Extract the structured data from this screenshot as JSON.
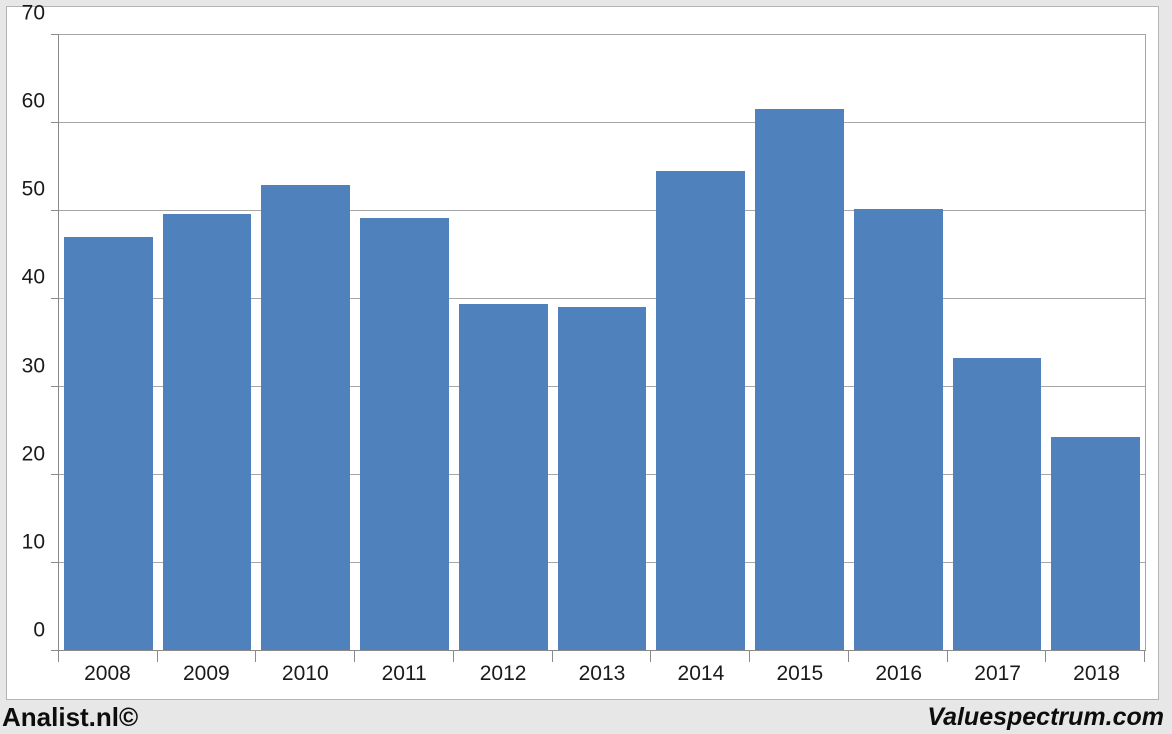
{
  "page": {
    "background_color": "#e7e7e7",
    "chart_area_color": "#ffffff"
  },
  "footer": {
    "left": "Analist.nl©",
    "right": "Valuespectrum.com"
  },
  "chart_data": {
    "type": "bar",
    "title": "",
    "xlabel": "",
    "ylabel": "",
    "categories": [
      "2008",
      "2009",
      "2010",
      "2011",
      "2012",
      "2013",
      "2014",
      "2015",
      "2016",
      "2017",
      "2018"
    ],
    "values": [
      46.9,
      49.6,
      52.8,
      49.1,
      39.3,
      39.0,
      54.4,
      61.5,
      50.1,
      33.2,
      24.2
    ],
    "ylim": [
      0,
      70
    ],
    "ytick_step": 10,
    "grid": true,
    "legend": "none",
    "bar_color": "#4f81bd",
    "grid_color": "#a6a6a6",
    "axis_color": "#8a8a8a",
    "label_color": "#1a1a1a"
  }
}
